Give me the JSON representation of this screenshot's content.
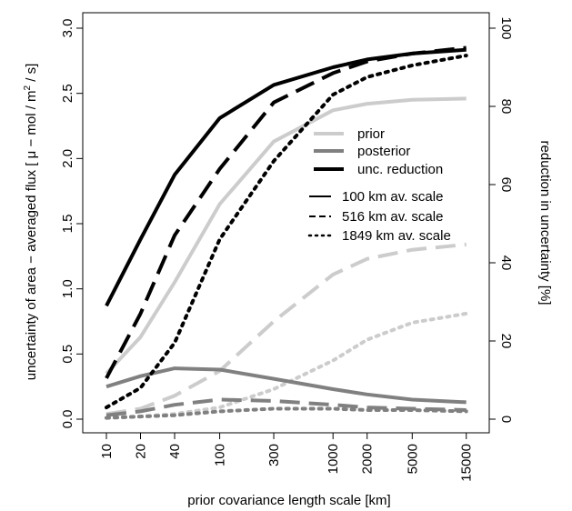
{
  "chart_data": {
    "type": "line",
    "xlabel": "prior covariance length scale  [km]",
    "ylabel_left": "uncertainty of area − averaged flux  [ μ − mol / m",
    "ylabel_left_sup": "2",
    "ylabel_left_tail": " / s]",
    "ylabel_right": "reduction in uncertainty [%]",
    "x_scale": "log",
    "x_ticks": [
      10,
      20,
      40,
      100,
      300,
      1000,
      2000,
      5000,
      15000
    ],
    "x_tick_labels": [
      "10",
      "20",
      "40",
      "100",
      "300",
      "1000",
      "2000",
      "5000",
      "15000"
    ],
    "y_left_range": [
      0,
      3.0
    ],
    "y_left_ticks": [
      "0.0",
      "0.5",
      "1.0",
      "1.5",
      "2.0",
      "2.5",
      "3.0"
    ],
    "y_right_range": [
      0,
      100
    ],
    "y_right_ticks": [
      "0",
      "20",
      "40",
      "60",
      "80",
      "100"
    ],
    "colors": {
      "prior": "#cccccc",
      "posterior": "#808080",
      "unc_reduction": "#000000"
    },
    "legend": {
      "position": "right-center",
      "quantities": [
        {
          "label": "prior",
          "color": "#cccccc"
        },
        {
          "label": "posterior",
          "color": "#808080"
        },
        {
          "label": "unc. reduction",
          "color": "#000000"
        }
      ],
      "scales": [
        {
          "label": "100 km av. scale",
          "dash": "solid"
        },
        {
          "label": "516 km av. scale",
          "dash": "dashed"
        },
        {
          "label": "1849 km av. scale",
          "dash": "dotted"
        }
      ]
    },
    "series": [
      {
        "quantity": "prior",
        "scale": "100 km",
        "axis": "left",
        "dash": "solid",
        "x": [
          10,
          20,
          40,
          100,
          300,
          1000,
          2000,
          5000,
          15000
        ],
        "y": [
          0.35,
          0.63,
          1.05,
          1.65,
          2.13,
          2.37,
          2.42,
          2.45,
          2.46
        ]
      },
      {
        "quantity": "prior",
        "scale": "516 km",
        "axis": "left",
        "dash": "dashed",
        "x": [
          10,
          20,
          40,
          100,
          300,
          1000,
          2000,
          5000,
          15000
        ],
        "y": [
          0.04,
          0.08,
          0.18,
          0.37,
          0.75,
          1.11,
          1.23,
          1.3,
          1.34
        ]
      },
      {
        "quantity": "prior",
        "scale": "1849 km",
        "axis": "left",
        "dash": "dotted",
        "x": [
          10,
          20,
          40,
          100,
          300,
          1000,
          2000,
          5000,
          15000
        ],
        "y": [
          0.01,
          0.02,
          0.04,
          0.09,
          0.23,
          0.45,
          0.61,
          0.74,
          0.81
        ]
      },
      {
        "quantity": "posterior",
        "scale": "100 km",
        "axis": "left",
        "dash": "solid",
        "x": [
          10,
          20,
          40,
          100,
          300,
          1000,
          2000,
          5000,
          15000
        ],
        "y": [
          0.25,
          0.33,
          0.39,
          0.38,
          0.31,
          0.23,
          0.19,
          0.15,
          0.13
        ]
      },
      {
        "quantity": "posterior",
        "scale": "516 km",
        "axis": "left",
        "dash": "dashed",
        "x": [
          10,
          20,
          40,
          100,
          300,
          1000,
          2000,
          5000,
          15000
        ],
        "y": [
          0.03,
          0.06,
          0.11,
          0.15,
          0.14,
          0.11,
          0.09,
          0.08,
          0.07
        ]
      },
      {
        "quantity": "posterior",
        "scale": "1849 km",
        "axis": "left",
        "dash": "dotted",
        "x": [
          10,
          20,
          40,
          100,
          300,
          1000,
          2000,
          5000,
          15000
        ],
        "y": [
          0.01,
          0.02,
          0.03,
          0.06,
          0.08,
          0.08,
          0.07,
          0.07,
          0.06
        ]
      },
      {
        "quantity": "unc. reduction",
        "scale": "100 km",
        "axis": "right",
        "dash": "solid",
        "x": [
          10,
          20,
          40,
          100,
          300,
          1000,
          2000,
          5000,
          15000
        ],
        "y": [
          29,
          46,
          62.5,
          77,
          85.5,
          90,
          92,
          93.5,
          94.5
        ]
      },
      {
        "quantity": "unc. reduction",
        "scale": "516 km",
        "axis": "right",
        "dash": "dashed",
        "x": [
          10,
          20,
          40,
          100,
          300,
          1000,
          2000,
          5000,
          15000
        ],
        "y": [
          10.5,
          27,
          47,
          64,
          81,
          88.5,
          91.5,
          93.5,
          95
        ]
      },
      {
        "quantity": "unc. reduction",
        "scale": "1849 km",
        "axis": "right",
        "dash": "dotted",
        "x": [
          10,
          20,
          40,
          100,
          300,
          1000,
          2000,
          5000,
          15000
        ],
        "y": [
          3,
          8,
          19.5,
          46,
          66,
          83,
          87.5,
          90.5,
          93
        ]
      }
    ]
  }
}
